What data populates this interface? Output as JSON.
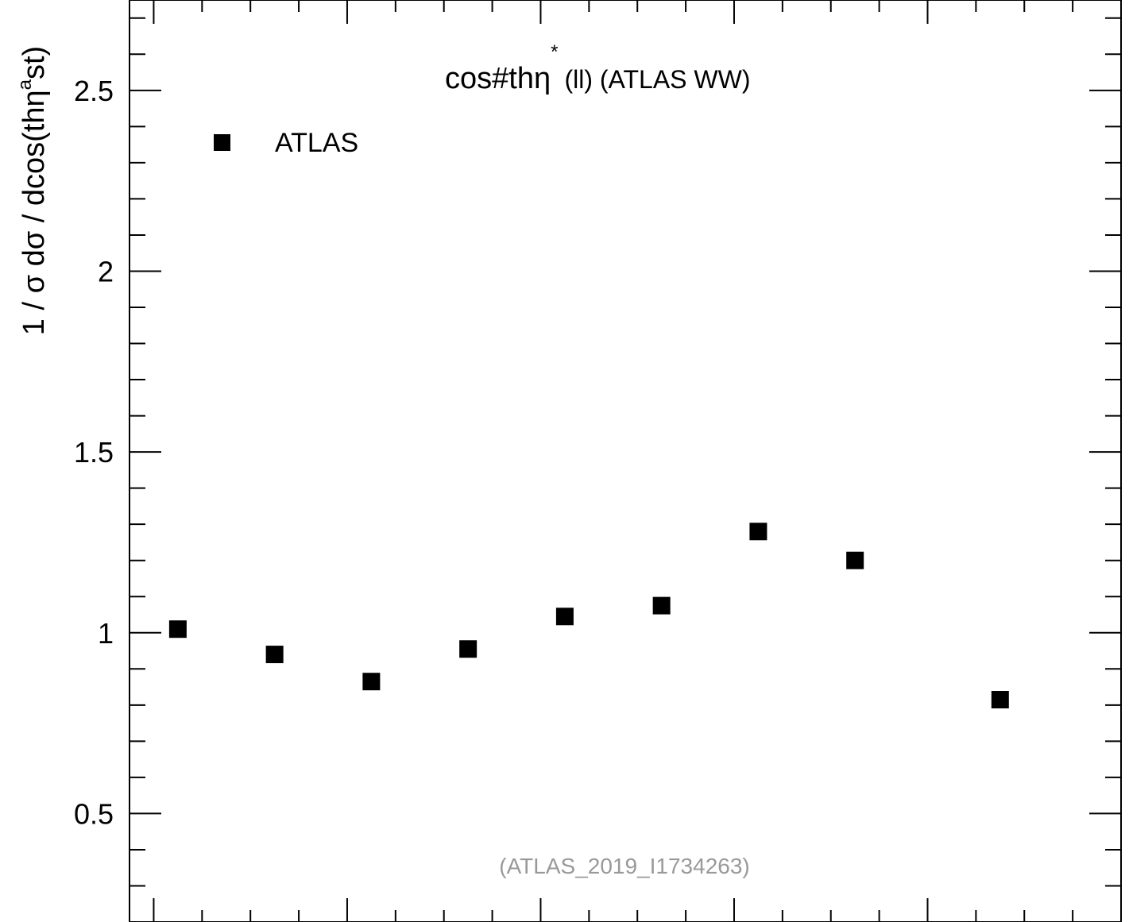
{
  "chart_data": {
    "type": "scatter",
    "title": "cos#thη",
    "title_sup": "*",
    "title_rest": "(ll) (ATLAS WW)",
    "ylabel": "1 / σ  dσ / dcos(thη",
    "ylabel_sup": "a",
    "ylabel_rest": "st)",
    "xlabel": "",
    "source_note": "(ATLAS_2019_I1734263)",
    "ylim": [
      0.2,
      2.75
    ],
    "xlim": [
      -0.025,
      1.0
    ],
    "y_major_ticks": [
      0.5,
      1,
      1.5,
      2,
      2.5
    ],
    "y_tick_labels": [
      "0.5",
      "1",
      "1.5",
      "2",
      "2.5"
    ],
    "y_minor_step": 0.1,
    "x_minor_step": 0.05,
    "x_major_step": 0.2,
    "log_y": false,
    "grid": false,
    "legend": {
      "position": "top-left",
      "entries": [
        "ATLAS"
      ]
    },
    "series": [
      {
        "name": "ATLAS",
        "marker": "square",
        "color": "#000000",
        "x": [
          0.025,
          0.125,
          0.225,
          0.325,
          0.425,
          0.525,
          0.625,
          0.725,
          0.875
        ],
        "y": [
          1.01,
          0.94,
          0.865,
          0.955,
          1.045,
          1.075,
          1.28,
          1.2,
          0.815
        ]
      }
    ]
  }
}
